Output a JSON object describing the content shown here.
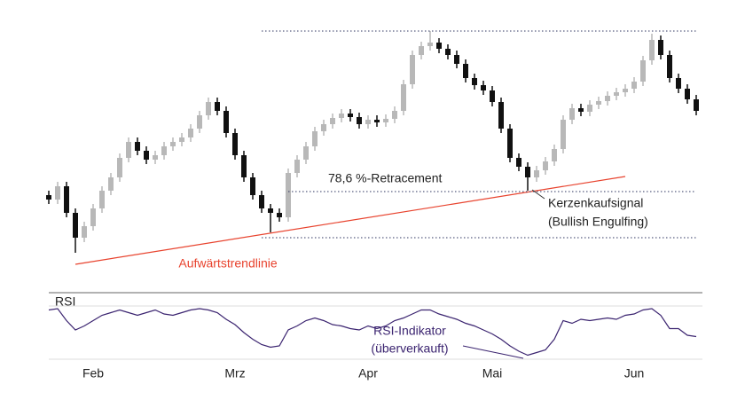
{
  "chart_data": {
    "type": "candlestick",
    "categories": [
      null,
      null,
      null,
      null,
      null,
      "Feb",
      null,
      null,
      null,
      null,
      null,
      null,
      null,
      null,
      null,
      null,
      null,
      null,
      null,
      null,
      null,
      "Mrz",
      null,
      null,
      null,
      null,
      null,
      null,
      null,
      null,
      null,
      null,
      null,
      null,
      null,
      null,
      "Apr",
      null,
      null,
      null,
      null,
      null,
      null,
      null,
      null,
      null,
      null,
      null,
      null,
      null,
      "Mai",
      null,
      null,
      null,
      null,
      null,
      null,
      null,
      null,
      null,
      null,
      null,
      null,
      null,
      null,
      null,
      "Jun",
      null,
      null,
      null,
      null,
      null,
      null,
      null
    ],
    "open": [
      80,
      75,
      90,
      60,
      32,
      45,
      65,
      85,
      100,
      122,
      140,
      130,
      120,
      125,
      135,
      140,
      145,
      155,
      170,
      185,
      175,
      150,
      125,
      100,
      80,
      65,
      60,
      55,
      105,
      120,
      135,
      152,
      160,
      167,
      172,
      168,
      160,
      165,
      162,
      166,
      175,
      205,
      238,
      248,
      252,
      245,
      238,
      228,
      212,
      204,
      198,
      185,
      155,
      122,
      112,
      100,
      108,
      118,
      132,
      165,
      178,
      174,
      182,
      186,
      192,
      196,
      200,
      208,
      232,
      255,
      238,
      212,
      200,
      188
    ],
    "high": [
      85,
      95,
      95,
      65,
      50,
      70,
      90,
      105,
      127,
      145,
      145,
      135,
      130,
      140,
      145,
      150,
      160,
      175,
      190,
      190,
      180,
      155,
      130,
      105,
      85,
      70,
      65,
      110,
      125,
      140,
      157,
      165,
      172,
      177,
      177,
      173,
      170,
      170,
      171,
      180,
      210,
      243,
      253,
      265,
      257,
      250,
      243,
      233,
      217,
      209,
      203,
      190,
      160,
      127,
      117,
      113,
      123,
      137,
      170,
      183,
      183,
      187,
      191,
      197,
      201,
      205,
      213,
      237,
      262,
      260,
      243,
      217,
      205,
      193
    ],
    "low": [
      70,
      70,
      55,
      15,
      27,
      40,
      60,
      80,
      95,
      117,
      125,
      115,
      115,
      120,
      130,
      135,
      140,
      150,
      165,
      170,
      145,
      120,
      95,
      75,
      60,
      38,
      50,
      50,
      100,
      115,
      130,
      147,
      155,
      162,
      163,
      155,
      155,
      157,
      157,
      161,
      170,
      200,
      233,
      243,
      240,
      233,
      223,
      207,
      199,
      193,
      180,
      150,
      117,
      107,
      85,
      95,
      103,
      113,
      127,
      160,
      169,
      169,
      177,
      181,
      187,
      191,
      195,
      203,
      227,
      233,
      207,
      195,
      183,
      170
    ],
    "close": [
      75,
      90,
      60,
      32,
      45,
      65,
      85,
      100,
      122,
      140,
      130,
      120,
      125,
      135,
      140,
      145,
      155,
      170,
      185,
      175,
      150,
      125,
      100,
      80,
      65,
      60,
      55,
      105,
      120,
      135,
      152,
      160,
      167,
      172,
      168,
      160,
      165,
      162,
      166,
      175,
      205,
      238,
      248,
      252,
      245,
      238,
      228,
      212,
      204,
      198,
      185,
      155,
      122,
      112,
      100,
      108,
      118,
      132,
      165,
      178,
      174,
      182,
      186,
      192,
      196,
      200,
      208,
      232,
      255,
      238,
      212,
      200,
      188,
      175
    ],
    "up_color": "#b8b8b8",
    "down_color": "#111111",
    "ylim": [
      0,
      270
    ],
    "levels": [
      {
        "value": 265,
        "from": 24
      },
      {
        "value": 84,
        "from": 27,
        "label": "78,6 %-Retracement"
      },
      {
        "value": 32,
        "from": 24
      }
    ],
    "level_color": "#2e3560",
    "trendline": [
      [
        3,
        2
      ],
      [
        65,
        101
      ]
    ],
    "trendline_label": "Aufwärtstrendlinie",
    "trendline_color": "#e8432e",
    "signal_label": [
      "Kerzenkaufsignal",
      "(Bullish Engulfing)"
    ],
    "rsi": {
      "label": "RSI",
      "values": [
        67,
        68,
        59,
        52,
        55,
        59,
        63,
        65,
        67,
        65,
        63,
        65,
        67,
        64,
        63,
        65,
        67,
        68,
        67,
        65,
        60,
        56,
        50,
        45,
        41,
        39,
        40,
        52,
        55,
        59,
        61,
        59,
        56,
        55,
        53,
        52,
        55,
        53,
        55,
        59,
        61,
        64,
        67,
        67,
        64,
        62,
        60,
        57,
        55,
        52,
        49,
        45,
        40,
        36,
        33,
        35,
        37,
        45,
        59,
        57,
        60,
        59,
        60,
        61,
        60,
        63,
        64,
        67,
        68,
        63,
        53,
        53,
        48,
        47
      ],
      "ylim": [
        30,
        70
      ],
      "color": "#3b2470",
      "annotation": [
        "RSI-Indikator",
        "(überverkauft)"
      ]
    }
  }
}
